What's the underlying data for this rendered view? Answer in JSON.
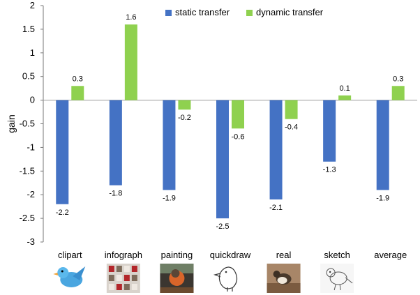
{
  "chart_data": {
    "type": "bar",
    "categories": [
      "clipart",
      "infograph",
      "painting",
      "quickdraw",
      "real",
      "sketch",
      "average"
    ],
    "series": [
      {
        "name": "static transfer",
        "color": "#4472C4",
        "values": [
          -2.2,
          -1.8,
          -1.9,
          -2.5,
          -2.1,
          -1.3,
          -1.9
        ]
      },
      {
        "name": "dynamic transfer",
        "color": "#8FD14F",
        "values": [
          0.3,
          1.6,
          -0.2,
          -0.6,
          -0.4,
          0.1,
          0.3
        ]
      }
    ],
    "data_labels": [
      [
        "-2.2",
        "-1.8",
        "-1.9",
        "-2.5",
        "-2.1",
        "-1.3",
        "-1.9"
      ],
      [
        "0.3",
        "1.6",
        "-0.2",
        "-0.6",
        "-0.4",
        "0.1",
        "0.3"
      ]
    ],
    "title": "",
    "xlabel": "",
    "ylabel": "gain",
    "ylim": [
      -3,
      2
    ],
    "yticks": [
      2,
      1.5,
      1,
      0.5,
      0,
      -0.5,
      -1,
      -1.5,
      -2,
      -2.5,
      -3
    ],
    "ytick_labels": [
      "2",
      "1.5",
      "1",
      "0.5",
      "0",
      "-0.5",
      "-1",
      "-1.5",
      "-2",
      "-2.5",
      "-3"
    ],
    "grid": false,
    "legend_position": "top-center"
  },
  "thumbnails": [
    {
      "category": "clipart",
      "icon": "clipart-bird-icon"
    },
    {
      "category": "infograph",
      "icon": "infograph-bird-icon"
    },
    {
      "category": "painting",
      "icon": "painting-bird-icon"
    },
    {
      "category": "quickdraw",
      "icon": "quickdraw-bird-icon"
    },
    {
      "category": "real",
      "icon": "real-bird-icon"
    },
    {
      "category": "sketch",
      "icon": "sketch-bird-icon"
    }
  ]
}
